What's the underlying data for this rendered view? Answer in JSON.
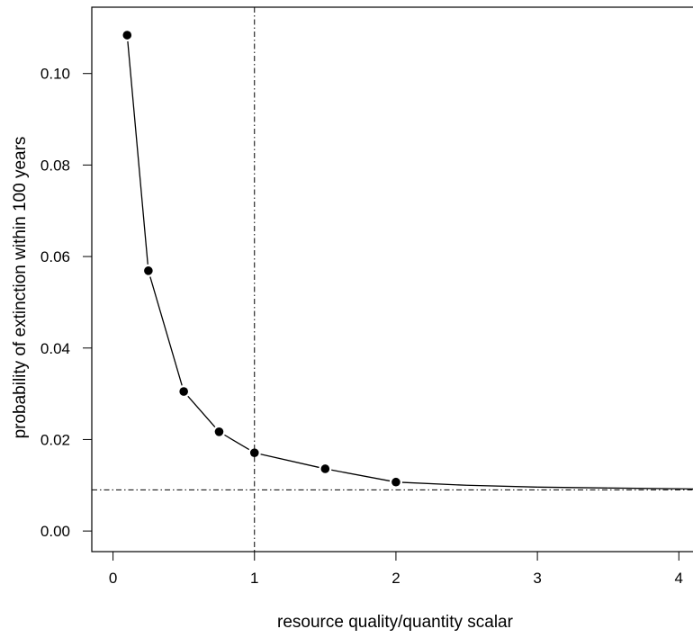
{
  "chart_data": {
    "type": "line",
    "title": "",
    "xlabel": "resource quality/quantity scalar",
    "ylabel": "probability of extinction within 100 years",
    "xlim": [
      -0.15,
      4.1
    ],
    "ylim": [
      -0.0045,
      0.1145
    ],
    "x_ticks": [
      0,
      1,
      2,
      3,
      4
    ],
    "x_tick_labels": [
      "0",
      "1",
      "2",
      "3",
      "4"
    ],
    "y_ticks": [
      0.0,
      0.02,
      0.04,
      0.06,
      0.08,
      0.1
    ],
    "y_tick_labels": [
      "0.00",
      "0.02",
      "0.04",
      "0.06",
      "0.08",
      "0.10"
    ],
    "grid": false,
    "legend": "none",
    "series": [
      {
        "x": [
          0.1,
          0.25,
          0.5,
          0.75,
          1.0,
          1.5,
          2.0
        ],
        "y": [
          0.1084,
          0.0569,
          0.0305,
          0.0217,
          0.0171,
          0.0136,
          0.0107
        ],
        "style": "line-with-points",
        "color": "#000000"
      },
      {
        "x": [
          2.0,
          2.5,
          3.0,
          3.5,
          4.1
        ],
        "y": [
          0.0107,
          0.01,
          0.0096,
          0.0094,
          0.0092
        ],
        "style": "line",
        "color": "#000000"
      }
    ],
    "reference_lines": [
      {
        "orientation": "vertical",
        "value": 1.0,
        "style": "dash-dot"
      },
      {
        "orientation": "horizontal",
        "value": 0.009,
        "style": "dash-dot"
      }
    ]
  }
}
